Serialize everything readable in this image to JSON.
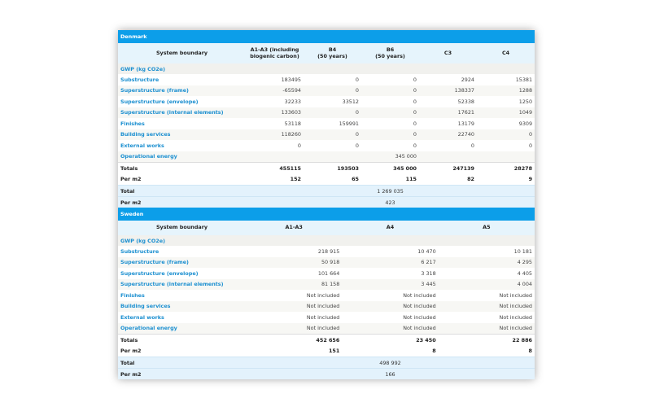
{
  "denmark": {
    "title": "Denmark",
    "columns": [
      "System boundary",
      "A1-A3 (including\nbiogenic carbon)",
      "B4\n(50 years)",
      "B6\n(50 years)",
      "C3",
      "C4"
    ],
    "gwp_label": "GWP (kg CO2e)",
    "rows": [
      {
        "label": "Substructure",
        "values": [
          "183495",
          "0",
          "0",
          "2924",
          "15381"
        ]
      },
      {
        "label": "Superstructure (frame)",
        "values": [
          "-65594",
          "0",
          "0",
          "138337",
          "1288"
        ]
      },
      {
        "label": "Superstructure (envelope)",
        "values": [
          "32233",
          "33512",
          "0",
          "52338",
          "1250"
        ]
      },
      {
        "label": "Superstructure (internal elements)",
        "values": [
          "133603",
          "0",
          "0",
          "17621",
          "1049"
        ]
      },
      {
        "label": "Finishes",
        "values": [
          "53118",
          "159991",
          "0",
          "13179",
          "9309"
        ]
      },
      {
        "label": "Building services",
        "values": [
          "118260",
          "0",
          "0",
          "22740",
          "0"
        ]
      },
      {
        "label": "External works",
        "values": [
          "0",
          "0",
          "0",
          "0",
          "0"
        ]
      },
      {
        "label": "Operational energy",
        "values": [
          "",
          "",
          "345 000",
          "",
          ""
        ]
      }
    ],
    "totals": {
      "label": "Totals",
      "values": [
        "455115",
        "193503",
        "345 000",
        "247139",
        "28278"
      ]
    },
    "per_m2": {
      "label": "Per m2",
      "values": [
        "152",
        "65",
        "115",
        "82",
        "9"
      ]
    },
    "grand_total": {
      "label": "Total",
      "value": "1 269 035"
    },
    "grand_per_m2": {
      "label": "Per m2",
      "value": "423"
    }
  },
  "sweden": {
    "title": "Sweden",
    "columns": [
      "System boundary",
      "A1-A3",
      "A4",
      "A5"
    ],
    "gwp_label": "GWP (kg CO2e)",
    "rows": [
      {
        "label": "Substructure",
        "values": [
          "218 915",
          "10 470",
          "10 181"
        ]
      },
      {
        "label": "Superstructure (frame)",
        "values": [
          "50 918",
          "6 217",
          "4 295"
        ]
      },
      {
        "label": "Superstructure (envelope)",
        "values": [
          "101 664",
          "3 318",
          "4 405"
        ]
      },
      {
        "label": "Superstructure (internal elements)",
        "values": [
          "81 158",
          "3 445",
          "4 004"
        ]
      },
      {
        "label": "Finishes",
        "values": [
          "Not included",
          "Not included",
          "Not included"
        ]
      },
      {
        "label": "Building services",
        "values": [
          "Not included",
          "Not included",
          "Not included"
        ]
      },
      {
        "label": "External works",
        "values": [
          "Not included",
          "Not included",
          "Not included"
        ]
      },
      {
        "label": "Operational energy",
        "values": [
          "Not included",
          "Not included",
          "Not included"
        ]
      }
    ],
    "totals": {
      "label": "Totals",
      "values": [
        "452 656",
        "23 450",
        "22 886"
      ]
    },
    "per_m2": {
      "label": "Per m2",
      "values": [
        "151",
        "8",
        "8"
      ]
    },
    "grand_total": {
      "label": "Total",
      "value": "498 992"
    },
    "grand_per_m2": {
      "label": "Per m2",
      "value": "166"
    }
  },
  "colors": {
    "header_blue": "#0c9ee9",
    "label_blue": "#1b8fd0",
    "total_bg": "#e3f2fc"
  }
}
